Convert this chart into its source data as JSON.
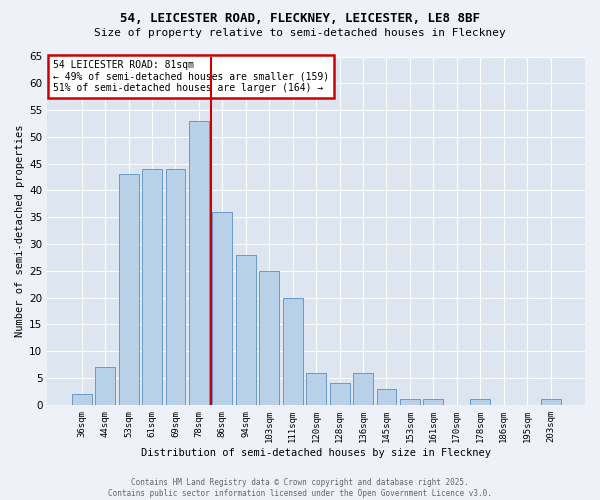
{
  "title1": "54, LEICESTER ROAD, FLECKNEY, LEICESTER, LE8 8BF",
  "title2": "Size of property relative to semi-detached houses in Fleckney",
  "xlabel": "Distribution of semi-detached houses by size in Fleckney",
  "ylabel": "Number of semi-detached properties",
  "categories": [
    "36sqm",
    "44sqm",
    "53sqm",
    "61sqm",
    "69sqm",
    "78sqm",
    "86sqm",
    "94sqm",
    "103sqm",
    "111sqm",
    "120sqm",
    "128sqm",
    "136sqm",
    "145sqm",
    "153sqm",
    "161sqm",
    "170sqm",
    "178sqm",
    "186sqm",
    "195sqm",
    "203sqm"
  ],
  "values": [
    2,
    7,
    43,
    44,
    44,
    53,
    36,
    28,
    25,
    20,
    6,
    4,
    6,
    3,
    1,
    1,
    0,
    1,
    0,
    0,
    1
  ],
  "bar_color": "#b8d0e8",
  "bar_edge_color": "#6699cc",
  "vline_x": 5.5,
  "vline_color": "#cc0000",
  "annotation_title": "54 LEICESTER ROAD: 81sqm",
  "annotation_line1": "← 49% of semi-detached houses are smaller (159)",
  "annotation_line2": "51% of semi-detached houses are larger (164) →",
  "annotation_box_color": "#cc0000",
  "ylim": [
    0,
    65
  ],
  "yticks": [
    0,
    5,
    10,
    15,
    20,
    25,
    30,
    35,
    40,
    45,
    50,
    55,
    60,
    65
  ],
  "fig_bg_color": "#eef2f8",
  "ax_bg_color": "#dde6f0",
  "footer1": "Contains HM Land Registry data © Crown copyright and database right 2025.",
  "footer2": "Contains public sector information licensed under the Open Government Licence v3.0."
}
